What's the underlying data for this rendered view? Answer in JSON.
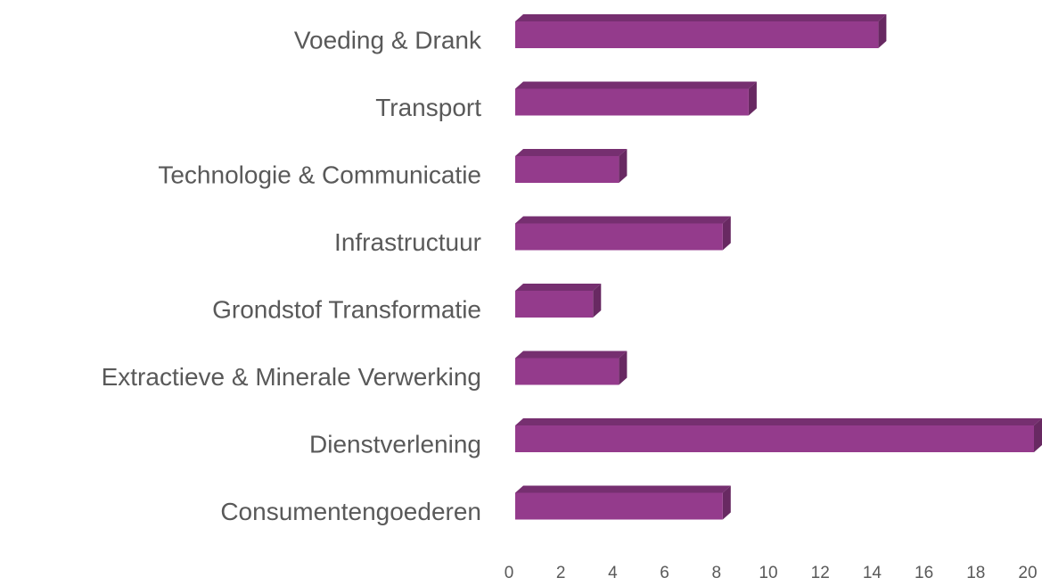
{
  "chart_data": {
    "type": "bar",
    "orientation": "horizontal",
    "three_d": true,
    "categories": [
      "Voeding & Drank",
      "Transport",
      "Technologie & Communicatie",
      "Infrastructuur",
      "Grondstof Transformatie",
      "Extractieve & Minerale Verwerking",
      "Dienstverlening",
      "Consumentengoederen"
    ],
    "values": [
      14,
      9,
      4,
      8,
      3,
      4,
      20,
      8
    ],
    "color": "#943b8c",
    "xlim": [
      0,
      20
    ],
    "xticks": [
      0,
      2,
      4,
      6,
      8,
      10,
      12,
      14,
      16,
      18,
      20
    ],
    "grid": false
  }
}
